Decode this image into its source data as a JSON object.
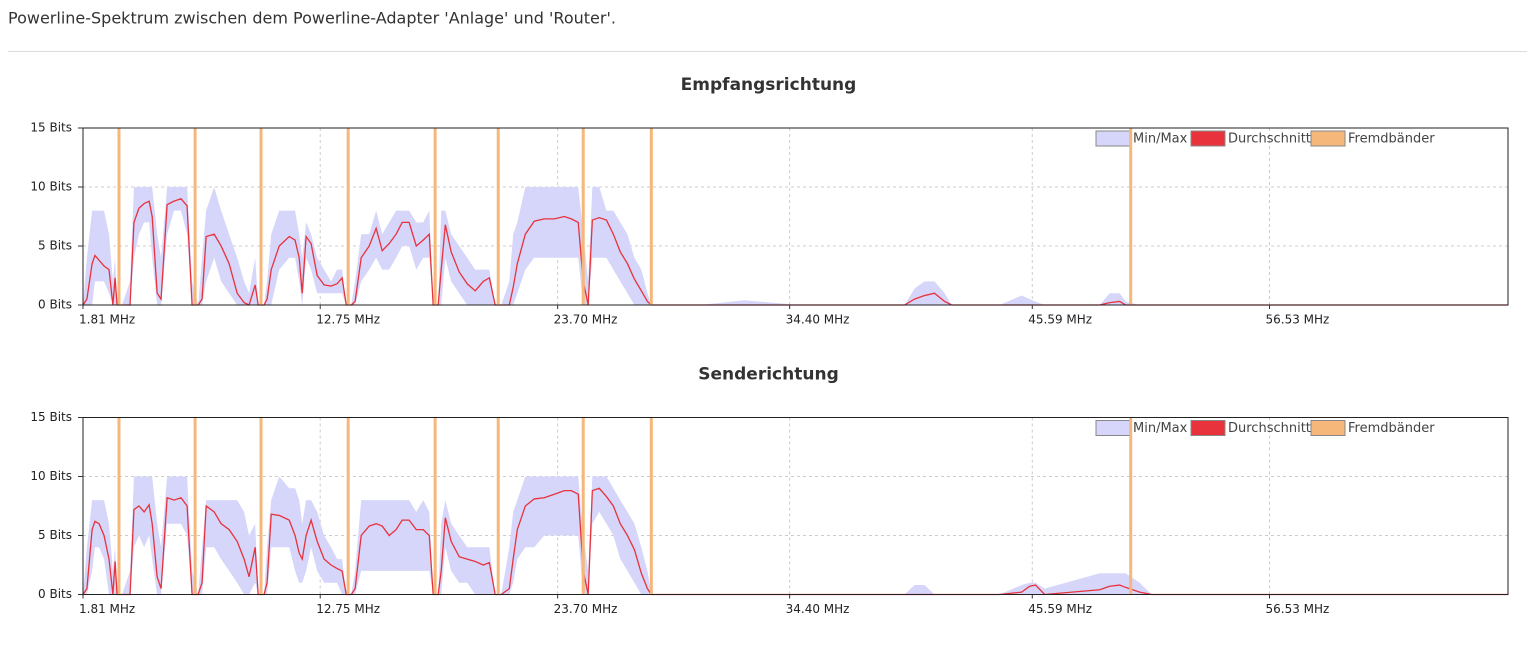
{
  "header": {
    "title": "Powerline-Spektrum zwischen dem Powerline-Adapter 'Anlage' und 'Router'."
  },
  "chart_data": [
    {
      "type": "range-line",
      "title": "Empfangsrichtung",
      "legend": "upper right",
      "grid": true,
      "xlim": [
        1.81,
        67.53
      ],
      "ylim": [
        0,
        15
      ],
      "xticks": [
        {
          "value": 1.81,
          "label": "1.81 MHz"
        },
        {
          "value": 12.75,
          "label": "12.75 MHz"
        },
        {
          "value": 23.7,
          "label": "23.70 MHz"
        },
        {
          "value": 34.4,
          "label": "34.40 MHz"
        },
        {
          "value": 45.59,
          "label": "45.59 MHz"
        },
        {
          "value": 56.53,
          "label": "56.53 MHz"
        }
      ],
      "yticks": [
        {
          "value": 0,
          "label": "0 Bits"
        },
        {
          "value": 5,
          "label": "5 Bits"
        },
        {
          "value": 10,
          "label": "10 Bits"
        },
        {
          "value": 15,
          "label": "15 Bits"
        }
      ],
      "x": [
        1.81,
        1.99,
        2.23,
        2.36,
        2.55,
        2.78,
        3.01,
        3.19,
        3.29,
        3.38,
        3.61,
        3.98,
        4.16,
        4.39,
        4.63,
        4.86,
        5.0,
        5.23,
        5.41,
        5.69,
        6.01,
        6.33,
        6.61,
        6.84,
        7.12,
        7.3,
        7.49,
        7.86,
        8.18,
        8.55,
        8.92,
        9.24,
        9.47,
        9.75,
        9.89,
        10.16,
        10.3,
        10.49,
        10.86,
        11.32,
        11.59,
        11.78,
        11.92,
        12.1,
        12.33,
        12.61,
        12.93,
        13.25,
        13.53,
        13.76,
        13.95,
        14.18,
        14.36,
        14.64,
        15.01,
        15.33,
        15.61,
        15.93,
        16.25,
        16.53,
        16.85,
        17.18,
        17.5,
        17.78,
        17.96,
        18.19,
        18.33,
        18.52,
        18.79,
        19.16,
        19.53,
        19.9,
        20.27,
        20.55,
        20.82,
        21.1,
        21.47,
        21.65,
        21.84,
        22.21,
        22.62,
        23.08,
        23.55,
        24.01,
        24.33,
        24.65,
        24.88,
        25.11,
        25.3,
        25.62,
        25.95,
        26.27,
        26.59,
        26.92,
        27.24,
        27.56,
        27.84,
        28.02,
        30.24,
        32.31,
        34.85,
        37.16,
        39.7,
        40.16,
        40.62,
        41.08,
        41.55,
        41.87,
        44.08,
        45.1,
        45.47,
        45.74,
        46.16,
        48.7,
        49.16,
        49.62,
        49.9,
        50.54,
        51.1,
        53.31,
        57.92,
        62.54,
        67.53
      ],
      "series": [
        {
          "name": "Min/Max",
          "color": "#d6d6fa",
          "low": [
            0,
            0,
            0,
            2,
            2,
            2,
            1,
            0,
            0,
            0,
            0,
            0,
            4,
            6,
            7,
            7,
            4,
            0,
            0,
            6,
            8,
            8,
            6,
            0,
            0,
            0,
            2,
            4,
            2,
            1,
            0,
            0,
            0,
            0,
            0,
            0,
            0,
            0,
            3,
            4,
            4,
            2,
            0,
            4,
            3,
            1,
            1,
            1,
            1,
            1,
            0,
            0,
            0,
            2,
            3,
            4,
            3,
            3,
            4,
            5,
            5,
            3,
            4,
            4,
            0,
            0,
            0,
            4,
            2,
            1,
            0,
            0,
            0,
            0,
            0,
            0,
            0,
            0,
            1,
            3,
            4,
            4,
            4,
            4,
            4,
            4,
            0,
            0,
            4,
            4,
            4,
            3,
            2,
            1,
            0,
            0,
            0,
            0,
            0,
            0,
            0,
            0,
            0,
            0,
            0,
            0,
            0,
            0,
            0,
            0,
            0,
            0,
            0,
            0,
            0,
            0,
            0,
            0,
            0,
            0,
            0,
            0,
            0
          ],
          "high": [
            0,
            4,
            8,
            8,
            8,
            8,
            6,
            2,
            4,
            0,
            0,
            2,
            10,
            10,
            10,
            10,
            10,
            6,
            4,
            10,
            10,
            10,
            10,
            2,
            0,
            4,
            8,
            10,
            8,
            6,
            4,
            2,
            1,
            4,
            0,
            0,
            2,
            6,
            8,
            8,
            8,
            6,
            4,
            7,
            6,
            4,
            3,
            2,
            3,
            3,
            0,
            0,
            2,
            6,
            6,
            8,
            6,
            7,
            8,
            8,
            8,
            7,
            7,
            8,
            0,
            0,
            8,
            8,
            6,
            5,
            4,
            3,
            3,
            3,
            0,
            0,
            2,
            6,
            7,
            10,
            10,
            10,
            10,
            10,
            10,
            10,
            6,
            2,
            10,
            10,
            8,
            8,
            7,
            6,
            4,
            3,
            1,
            0,
            0,
            0.4,
            0,
            0,
            0,
            1.4,
            2,
            2,
            1,
            0,
            0,
            0.8,
            0.5,
            0.3,
            0,
            0,
            1,
            1,
            0.3,
            0,
            0,
            0,
            0,
            0,
            0
          ]
        },
        {
          "name": "Durchschnitt",
          "color": "#e8323c",
          "values": [
            0,
            0.5,
            3.5,
            4.2,
            3.8,
            3.3,
            3,
            0,
            2.3,
            0,
            0,
            0,
            7,
            8.2,
            8.6,
            8.8,
            7.5,
            1,
            0.5,
            8.5,
            8.8,
            9,
            8.4,
            0,
            0,
            0.5,
            5.8,
            6,
            5,
            3.5,
            1,
            0.2,
            0,
            1.7,
            0,
            0,
            0.5,
            3,
            5,
            5.8,
            5.5,
            4,
            1,
            5.8,
            5.2,
            2.5,
            1.7,
            1.6,
            1.8,
            2.3,
            0,
            0,
            0.3,
            4,
            5,
            6.5,
            4.6,
            5.2,
            6,
            7,
            7,
            5,
            5.5,
            6,
            0,
            0,
            3,
            6.8,
            4.5,
            2.8,
            1.8,
            1.2,
            2,
            2.3,
            0,
            0,
            0,
            1.5,
            3.5,
            6,
            7.1,
            7.3,
            7.3,
            7.5,
            7.3,
            7,
            2,
            0,
            7.2,
            7.4,
            7.2,
            6,
            4.5,
            3.5,
            2.2,
            1.2,
            0.3,
            0,
            0,
            0,
            0,
            0,
            0,
            0.5,
            0.8,
            1,
            0.3,
            0,
            0,
            0,
            0,
            0,
            0,
            0,
            0.2,
            0.3,
            0,
            0,
            0,
            0,
            0,
            0,
            0
          ]
        },
        {
          "name": "Fremdbänder",
          "color": "#f5b77a",
          "x": [
            3.47,
            6.98,
            10.02,
            14.04,
            18.05,
            20.96,
            24.88,
            28.02,
            50.13
          ]
        }
      ]
    },
    {
      "type": "range-line",
      "title": "Senderichtung",
      "legend": "upper right",
      "grid": true,
      "xlim": [
        1.81,
        67.53
      ],
      "ylim": [
        0,
        15
      ],
      "xticks": [
        {
          "value": 1.81,
          "label": "1.81 MHz"
        },
        {
          "value": 12.75,
          "label": "12.75 MHz"
        },
        {
          "value": 23.7,
          "label": "23.70 MHz"
        },
        {
          "value": 34.4,
          "label": "34.40 MHz"
        },
        {
          "value": 45.59,
          "label": "45.59 MHz"
        },
        {
          "value": 56.53,
          "label": "56.53 MHz"
        }
      ],
      "yticks": [
        {
          "value": 0,
          "label": "0 Bits"
        },
        {
          "value": 5,
          "label": "5 Bits"
        },
        {
          "value": 10,
          "label": "10 Bits"
        },
        {
          "value": 15,
          "label": "15 Bits"
        }
      ],
      "x": [
        1.81,
        1.99,
        2.23,
        2.36,
        2.55,
        2.78,
        3.01,
        3.19,
        3.29,
        3.38,
        3.61,
        3.98,
        4.16,
        4.39,
        4.63,
        4.86,
        5.0,
        5.23,
        5.41,
        5.69,
        6.01,
        6.33,
        6.61,
        6.84,
        7.12,
        7.3,
        7.49,
        7.86,
        8.18,
        8.55,
        8.92,
        9.24,
        9.47,
        9.75,
        9.89,
        10.16,
        10.3,
        10.49,
        10.86,
        11.32,
        11.59,
        11.78,
        11.92,
        12.1,
        12.33,
        12.61,
        12.93,
        13.25,
        13.53,
        13.76,
        13.95,
        14.18,
        14.36,
        14.64,
        15.01,
        15.33,
        15.61,
        15.93,
        16.25,
        16.53,
        16.85,
        17.18,
        17.5,
        17.78,
        17.96,
        18.19,
        18.33,
        18.52,
        18.79,
        19.16,
        19.53,
        19.9,
        20.27,
        20.55,
        20.82,
        21.1,
        21.47,
        21.65,
        21.84,
        22.21,
        22.62,
        23.08,
        23.55,
        24.01,
        24.33,
        24.65,
        24.88,
        25.11,
        25.3,
        25.62,
        25.95,
        26.27,
        26.59,
        26.92,
        27.24,
        27.56,
        27.84,
        28.02,
        30.24,
        32.31,
        34.85,
        37.16,
        39.7,
        40.16,
        40.62,
        41.08,
        41.55,
        41.87,
        44.08,
        45.1,
        45.47,
        45.74,
        46.16,
        48.7,
        49.16,
        49.62,
        49.9,
        50.54,
        51.1,
        53.31,
        57.92,
        62.54,
        67.53
      ],
      "series": [
        {
          "name": "Min/Max",
          "color": "#d6d6fa",
          "low": [
            0,
            0,
            2,
            4,
            4,
            3,
            0,
            0,
            0,
            0,
            0,
            0,
            4,
            5,
            4,
            5,
            3,
            0,
            0,
            6,
            6,
            6,
            5,
            0,
            0,
            0,
            4,
            4,
            3,
            2,
            1,
            0,
            0,
            1,
            0,
            0,
            0,
            4,
            4,
            4,
            2,
            1,
            1,
            2,
            4,
            2,
            1,
            1,
            1,
            0,
            0,
            0,
            0,
            2,
            2,
            2,
            2,
            2,
            2,
            2,
            2,
            2,
            2,
            2,
            0,
            0,
            0,
            4,
            2,
            1,
            1,
            0,
            0,
            0,
            0,
            0,
            0,
            1,
            3,
            4,
            4,
            5,
            5,
            5,
            5,
            5,
            0,
            0,
            6,
            7,
            6,
            5,
            3,
            2,
            1,
            0,
            0,
            0,
            0,
            0,
            0,
            0,
            0,
            0,
            0,
            0,
            0,
            0,
            0,
            0,
            0,
            0,
            0,
            0,
            0,
            0,
            0,
            0,
            0,
            0,
            0,
            0,
            0
          ],
          "high": [
            0,
            4,
            8,
            8,
            8,
            8,
            6,
            2,
            4,
            0,
            0,
            2,
            10,
            10,
            10,
            10,
            10,
            6,
            4,
            10,
            10,
            10,
            10,
            2,
            0,
            4,
            8,
            8,
            8,
            8,
            8,
            7,
            5,
            6,
            0,
            0,
            4,
            8,
            10,
            9,
            9,
            8,
            6,
            8,
            8,
            7,
            5,
            4,
            3,
            3,
            0,
            0,
            2,
            8,
            8,
            8,
            8,
            8,
            8,
            8,
            8,
            7,
            8,
            7,
            0,
            0,
            6,
            8,
            6,
            5,
            4,
            4,
            4,
            4,
            0,
            0,
            4,
            7,
            8,
            10,
            10,
            10,
            10,
            10,
            10,
            10,
            5,
            2,
            10,
            10,
            10,
            9,
            8,
            7,
            6,
            4,
            2,
            0,
            0,
            0,
            0,
            0,
            0,
            0.8,
            0.8,
            0,
            0,
            0,
            0,
            0.8,
            1,
            1,
            0.5,
            1.8,
            1.8,
            1.8,
            1.8,
            1,
            0,
            0,
            0,
            0,
            0
          ]
        },
        {
          "name": "Durchschnitt",
          "color": "#e8323c",
          "values": [
            0,
            0.5,
            5.5,
            6.2,
            6,
            5,
            3,
            0,
            2.8,
            0,
            0,
            0,
            7.2,
            7.5,
            7,
            7.6,
            6,
            1.5,
            0.5,
            8.2,
            8,
            8.2,
            7.5,
            0,
            0,
            1,
            7.5,
            7,
            6,
            5.5,
            4.5,
            3,
            1.5,
            4,
            0,
            0,
            1,
            6.8,
            6.7,
            6.3,
            5,
            3.5,
            3,
            5,
            6.3,
            4.5,
            3,
            2.5,
            2.2,
            2,
            0,
            0,
            0.5,
            5,
            5.8,
            6,
            5.8,
            5,
            5.5,
            6.3,
            6.3,
            5.5,
            5.5,
            5,
            0,
            0,
            2,
            6.5,
            4.5,
            3.2,
            3,
            2.8,
            2.5,
            2.7,
            0,
            0,
            0.5,
            3,
            5.5,
            7.5,
            8.1,
            8.2,
            8.5,
            8.8,
            8.8,
            8.5,
            2,
            0,
            8.8,
            9,
            8.3,
            7.5,
            6,
            5,
            3.8,
            1.8,
            0.5,
            0,
            0,
            0,
            0,
            0,
            0,
            0,
            0,
            0,
            0,
            0,
            0,
            0.2,
            0.7,
            0.8,
            0,
            0.4,
            0.7,
            0.8,
            0.6,
            0.2,
            0,
            0,
            0,
            0,
            0
          ]
        },
        {
          "name": "Fremdbänder",
          "color": "#f5b77a",
          "x": [
            3.47,
            6.98,
            10.02,
            14.04,
            18.05,
            20.96,
            24.88,
            28.02,
            50.13
          ]
        }
      ]
    }
  ]
}
